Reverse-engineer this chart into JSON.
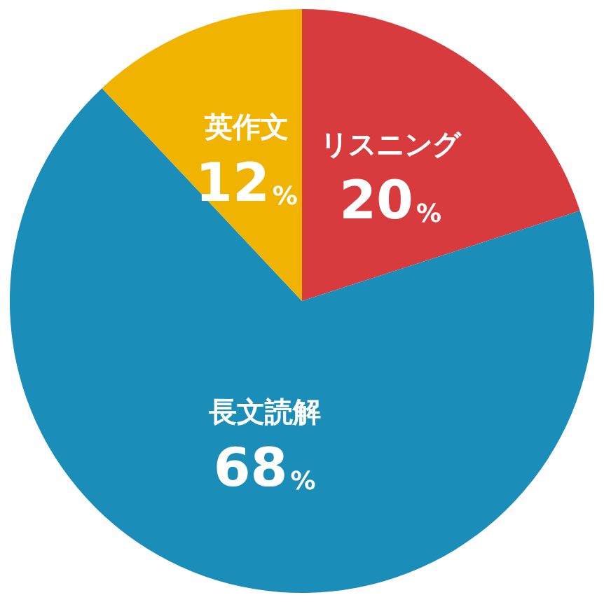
{
  "chart_data": {
    "type": "pie",
    "categories": [
      "リスニング",
      "長文読解",
      "英作文"
    ],
    "values": [
      20,
      68,
      12
    ],
    "colors": [
      "#d83b3e",
      "#1a8db8",
      "#f0b400"
    ],
    "value_labels": [
      "20%",
      "68%",
      "12%"
    ],
    "legend": false
  }
}
